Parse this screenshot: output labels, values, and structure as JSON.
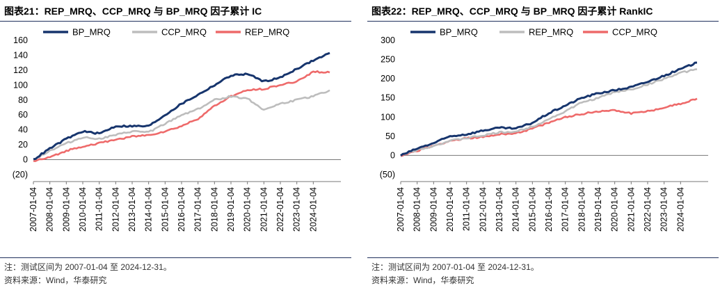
{
  "panels": [
    {
      "title": "图表21：REP_MRQ、CCP_MRQ 与 BP_MRQ 因子累计 IC",
      "note": "注：测试区间为 2007-01-04 至 2024-12-31。",
      "source": "资料来源：Wind，华泰研究"
    },
    {
      "title": "图表22：REP_MRQ、CCP_MRQ 与 BP_MRQ 因子累计 RankIC",
      "note": "注：测试区间为 2007-01-04 至 2024-12-31。",
      "source": "资料来源：Wind，华泰研究"
    }
  ],
  "chart_data": [
    {
      "type": "line",
      "title": "REP_MRQ、CCP_MRQ 与 BP_MRQ 因子累计 IC",
      "xlabel": "",
      "ylabel": "",
      "ylim": [
        -20,
        160
      ],
      "ytick_labels": [
        "(20)",
        "0",
        "20",
        "40",
        "60",
        "80",
        "100",
        "120",
        "140",
        "160"
      ],
      "yticks": [
        -20,
        0,
        20,
        40,
        60,
        80,
        100,
        120,
        140,
        160
      ],
      "x": [
        2007,
        2008,
        2009,
        2010,
        2011,
        2012,
        2013,
        2014,
        2015,
        2016,
        2017,
        2018,
        2019,
        2020,
        2021,
        2022,
        2023,
        2024,
        2025
      ],
      "xtick_labels": [
        "2007-01-04",
        "2008-01-04",
        "2009-01-04",
        "2010-01-04",
        "2011-01-04",
        "2012-01-04",
        "2013-01-04",
        "2014-01-04",
        "2015-01-04",
        "2016-01-04",
        "2017-01-04",
        "2018-01-04",
        "2019-01-04",
        "2020-01-04",
        "2021-01-04",
        "2022-01-04",
        "2023-01-04",
        "2024-01-04"
      ],
      "legend_position": "top",
      "series": [
        {
          "name": "BP_MRQ",
          "color": "#17356d",
          "values": [
            0,
            15,
            28,
            38,
            35,
            45,
            45,
            45,
            60,
            75,
            87,
            100,
            113,
            115,
            105,
            110,
            122,
            133,
            143
          ]
        },
        {
          "name": "CCP_MRQ",
          "color": "#bdbdbd",
          "values": [
            0,
            12,
            22,
            30,
            28,
            33,
            38,
            37,
            48,
            60,
            68,
            80,
            85,
            82,
            67,
            75,
            80,
            85,
            93
          ]
        },
        {
          "name": "REP_MRQ",
          "color": "#ee6a6a",
          "values": [
            -2,
            3,
            12,
            18,
            22,
            27,
            31,
            33,
            38,
            45,
            55,
            72,
            85,
            93,
            95,
            100,
            105,
            118,
            117
          ]
        }
      ]
    },
    {
      "type": "line",
      "title": "REP_MRQ、CCP_MRQ 与 BP_MRQ 因子累计 RankIC",
      "xlabel": "",
      "ylabel": "",
      "ylim": [
        -50,
        300
      ],
      "ytick_labels": [
        "(50)",
        "0",
        "50",
        "100",
        "150",
        "200",
        "250",
        "300"
      ],
      "yticks": [
        -50,
        0,
        50,
        100,
        150,
        200,
        250,
        300
      ],
      "x": [
        2007,
        2008,
        2009,
        2010,
        2011,
        2012,
        2013,
        2014,
        2015,
        2016,
        2017,
        2018,
        2019,
        2020,
        2021,
        2022,
        2023,
        2024,
        2025
      ],
      "xtick_labels": [
        "2007-01-04",
        "2008-01-04",
        "2009-01-04",
        "2010-01-04",
        "2011-01-04",
        "2012-01-04",
        "2013-01-04",
        "2014-01-04",
        "2015-01-04",
        "2016-01-04",
        "2017-01-04",
        "2018-01-04",
        "2019-01-04",
        "2020-01-04",
        "2021-01-04",
        "2022-01-04",
        "2023-01-04",
        "2024-01-04"
      ],
      "legend_position": "top",
      "series": [
        {
          "name": "BP_MRQ",
          "color": "#17356d",
          "values": [
            0,
            18,
            32,
            50,
            55,
            65,
            72,
            70,
            85,
            110,
            130,
            150,
            162,
            170,
            178,
            192,
            208,
            225,
            242
          ]
        },
        {
          "name": "REP_MRQ",
          "color": "#bdbdbd",
          "values": [
            0,
            15,
            25,
            38,
            45,
            52,
            60,
            62,
            75,
            95,
            115,
            138,
            150,
            165,
            172,
            185,
            200,
            215,
            225
          ]
        },
        {
          "name": "CCP_MRQ",
          "color": "#ee6a6a",
          "values": [
            0,
            12,
            25,
            38,
            45,
            48,
            55,
            58,
            70,
            85,
            100,
            108,
            115,
            118,
            110,
            115,
            125,
            135,
            148
          ]
        }
      ]
    }
  ]
}
